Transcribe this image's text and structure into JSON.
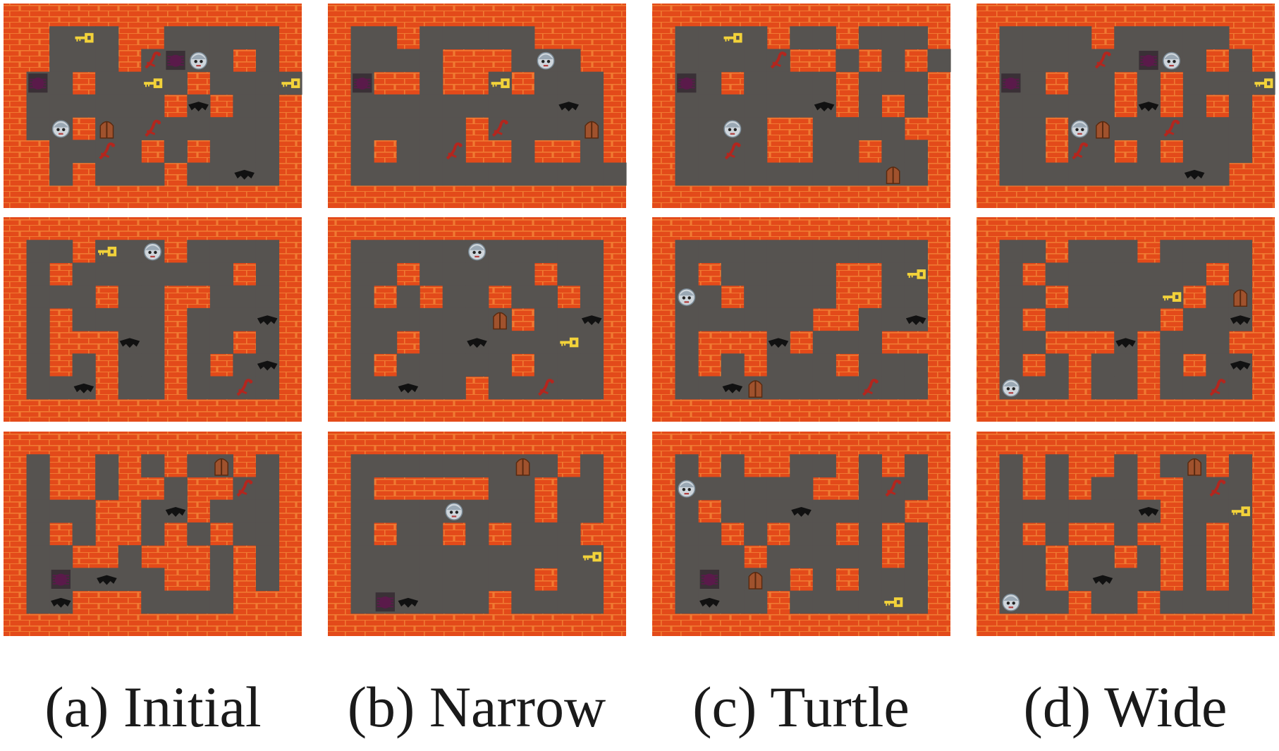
{
  "captions": [
    "(a) Initial",
    "(b) Narrow",
    "(c) Turtle",
    "(d) Wide"
  ],
  "colors": {
    "brick": "#e34a1a",
    "mortar": "#f07a32",
    "floor": "#565350",
    "key": "#f2d23a",
    "door": "#a0522d",
    "bat": "#111111",
    "spider": "#5a1a4a",
    "scorpion": "#b3261e",
    "face": "#cfd6dc"
  },
  "tile_legend": {
    "#": "wall",
    ".": "floor",
    "K": "key",
    "D": "door",
    "P": "player",
    "B": "bat",
    "S": "spider",
    "Z": "scorpion"
  },
  "icons": {
    "K": "key-icon",
    "D": "door-icon",
    "P": "player-icon",
    "B": "bat-icon",
    "S": "spider-icon",
    "Z": "scorpion-icon"
  },
  "columns": [
    {
      "label": "Initial",
      "levels": [
        [
          "#############",
          "##.K.##.....#",
          "##...#ZSP.#.#",
          "#S.#..K.#...K",
          "#......#B#..#",
          "#.P#D.Z.....#",
          "##..Z.#.#...#",
          "##.#...#..B.#",
          "#############"
        ],
        [
          "#############",
          "#..#K P#....#",
          "#.#.......#.#",
          "#...#..##...#",
          "#.#....#...B#",
          "#.###B.#..#.#",
          "#.#.#..#.#.B#",
          "#..B#..#..Z.#",
          "#############"
        ],
        [
          "#############",
          "#.##.#.#.D#.#",
          "#.##.##.##Z.#",
          "#...##.B#...#",
          "#.#.##.#.#..#",
          "#..##.###.#.#",
          "#.S.B..##.#.#",
          "#.B###....###",
          "#############"
        ]
      ]
    },
    {
      "label": "Narrow",
      "levels": [
        [
          "#############",
          "#..#.....####",
          "#....###.P.#",
          "#S##.##K#...#",
          "#.........B.#",
          "#.....#Z...D#",
          "#.#..Z##.##.#",
          "#............",
          "#############"
        ],
        [
          "#############",
          "#.....P.....#",
          "#..#.....#..#",
          "#.#.#..#..#.#",
          "#......D#..B#",
          "#..#..B...K.#",
          "#.#.....#...#",
          "#..B..#..Z..#",
          "#############"
        ],
        [
          "#############",
          "#.......D.#.#",
          "#.#####..#..#",
          "#....P...#..#",
          "#.#..#.#...##",
          "#..........K#",
          "#........#..#",
          "#.SB...#....#",
          "#############"
        ]
      ]
    },
    {
      "label": "Turtle",
      "levels": [
        [
          "#############",
          "#..K.#..#...#",
          "#....Z##.#.#.",
          "#S.#....#...#",
          "#......B#.#.#",
          "#..P.##....##",
          "#..Z.##..#..#",
          "#.........D.#",
          "#############"
        ],
        [
          "#############",
          "#...........#",
          "#.#.....##.K#",
          "#P.#....##..#",
          "#......##..B#",
          "#.###B#...###",
          "#.#.#...#...#",
          "#..BD....Z..#",
          "#############"
        ],
        [
          "#############",
          "#.#.##..#.#.#",
          "#P.....##.Z.#",
          "#.#...B....##",
          "#..#.#..#.#.#",
          "#...#.....#.#",
          "#.S.D.#.#...#",
          "#.B..#....K.#",
          "#############"
        ]
      ]
    },
    {
      "label": "Wide",
      "levels": [
        [
          "#############",
          "#....#.....##",
          "#....Z.SP.#.#",
          "#S.#..#.#...K",
          "#.....#B#.#.#",
          "#..#PD..Z...#",
          "#..#Z.#.#...#",
          "#........B.#",
          "#############"
        ],
        [
          "#############",
          "#..#...#....#",
          "#.#.......#.#",
          "#..#....K#.D#",
          "#.#.....#..B#",
          "#..###B#...##",
          "#.#.#..#.#.B#",
          "#P..#..#..Z.#",
          "#############"
        ],
        [
          "#############",
          "#.#.##.#.D#.#",
          "#.#.#..##.Z.#",
          "#......B#..K#",
          "#.#.##.##.#.#",
          "#..#..#.#.#.#",
          "#..#.B..#.#.#",
          "#P..#..#....#",
          "#############"
        ]
      ]
    }
  ]
}
